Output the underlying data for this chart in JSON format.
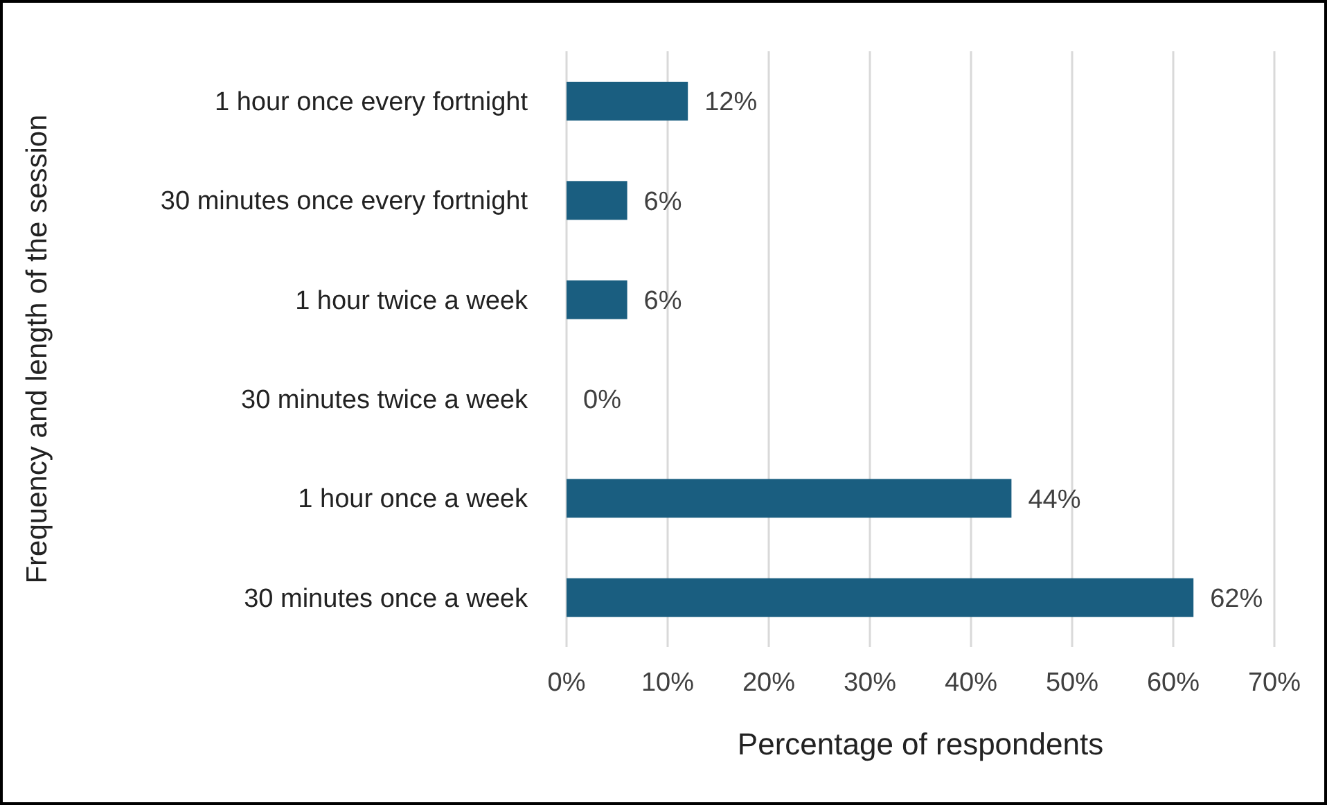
{
  "chart_data": {
    "type": "bar",
    "orientation": "horizontal",
    "xlabel": "Percentage of respondents",
    "ylabel": "Frequency and length of the session",
    "categories": [
      "1 hour once every fortnight",
      "30 minutes once every fortnight",
      "1 hour twice a week",
      "30 minutes twice a week",
      "1 hour once a week",
      "30 minutes once a week"
    ],
    "values": [
      12,
      6,
      6,
      0,
      44,
      62
    ],
    "value_labels": [
      "12%",
      "6%",
      "6%",
      "0%",
      "44%",
      "62%"
    ],
    "color": "#1a5e80",
    "xlim": [
      0,
      70
    ],
    "xticks": [
      {
        "value": 0,
        "label": "0%"
      },
      {
        "value": 10,
        "label": "10%"
      },
      {
        "value": 20,
        "label": "20%"
      },
      {
        "value": 30,
        "label": "30%"
      },
      {
        "value": 40,
        "label": "40%"
      },
      {
        "value": 50,
        "label": "50%"
      },
      {
        "value": 60,
        "label": "60%"
      },
      {
        "value": 70,
        "label": "70%"
      }
    ],
    "grid": "x"
  }
}
